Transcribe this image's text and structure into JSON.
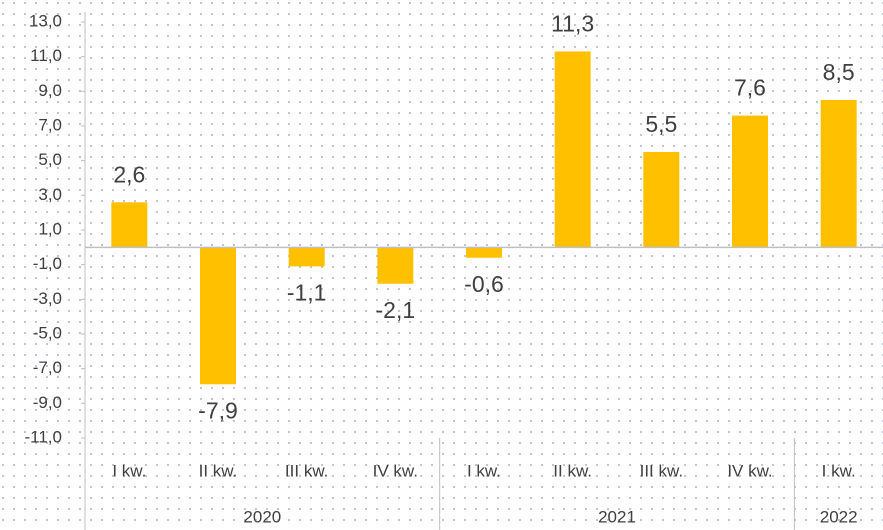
{
  "chart_data": {
    "type": "bar",
    "color": "#ffc000",
    "groups": [
      {
        "label": "2020",
        "categories": [
          "I kw.",
          "II kw.",
          "III kw.",
          "IV kw."
        ],
        "values": [
          2.6,
          -7.9,
          -1.1,
          -2.1
        ],
        "value_labels": [
          "2,6",
          "-7,9",
          "-1,1",
          "-2,1"
        ]
      },
      {
        "label": "2021",
        "categories": [
          "I kw.",
          "II kw.",
          "III kw.",
          "IV kw."
        ],
        "values": [
          -0.6,
          11.3,
          5.5,
          7.6
        ],
        "value_labels": [
          "-0,6",
          "11,3",
          "5,5",
          "7,6"
        ]
      },
      {
        "label": "2022",
        "categories": [
          "I kw."
        ],
        "values": [
          8.5
        ],
        "value_labels": [
          "8,5"
        ]
      }
    ],
    "ylim": [
      -11,
      13
    ],
    "yticks": [
      {
        "value": 13,
        "label": "13,0"
      },
      {
        "value": 11,
        "label": "11,0"
      },
      {
        "value": 9,
        "label": "9,0"
      },
      {
        "value": 7,
        "label": "7,0"
      },
      {
        "value": 5,
        "label": "5,0"
      },
      {
        "value": 3,
        "label": "3,0"
      },
      {
        "value": 1,
        "label": "1,0"
      },
      {
        "value": -1,
        "label": "-1,0"
      },
      {
        "value": -3,
        "label": "-3,0"
      },
      {
        "value": -5,
        "label": "-5,0"
      },
      {
        "value": -7,
        "label": "-7,0"
      },
      {
        "value": -9,
        "label": "-9,0"
      },
      {
        "value": -11,
        "label": "-11,0"
      }
    ],
    "grid": false
  }
}
